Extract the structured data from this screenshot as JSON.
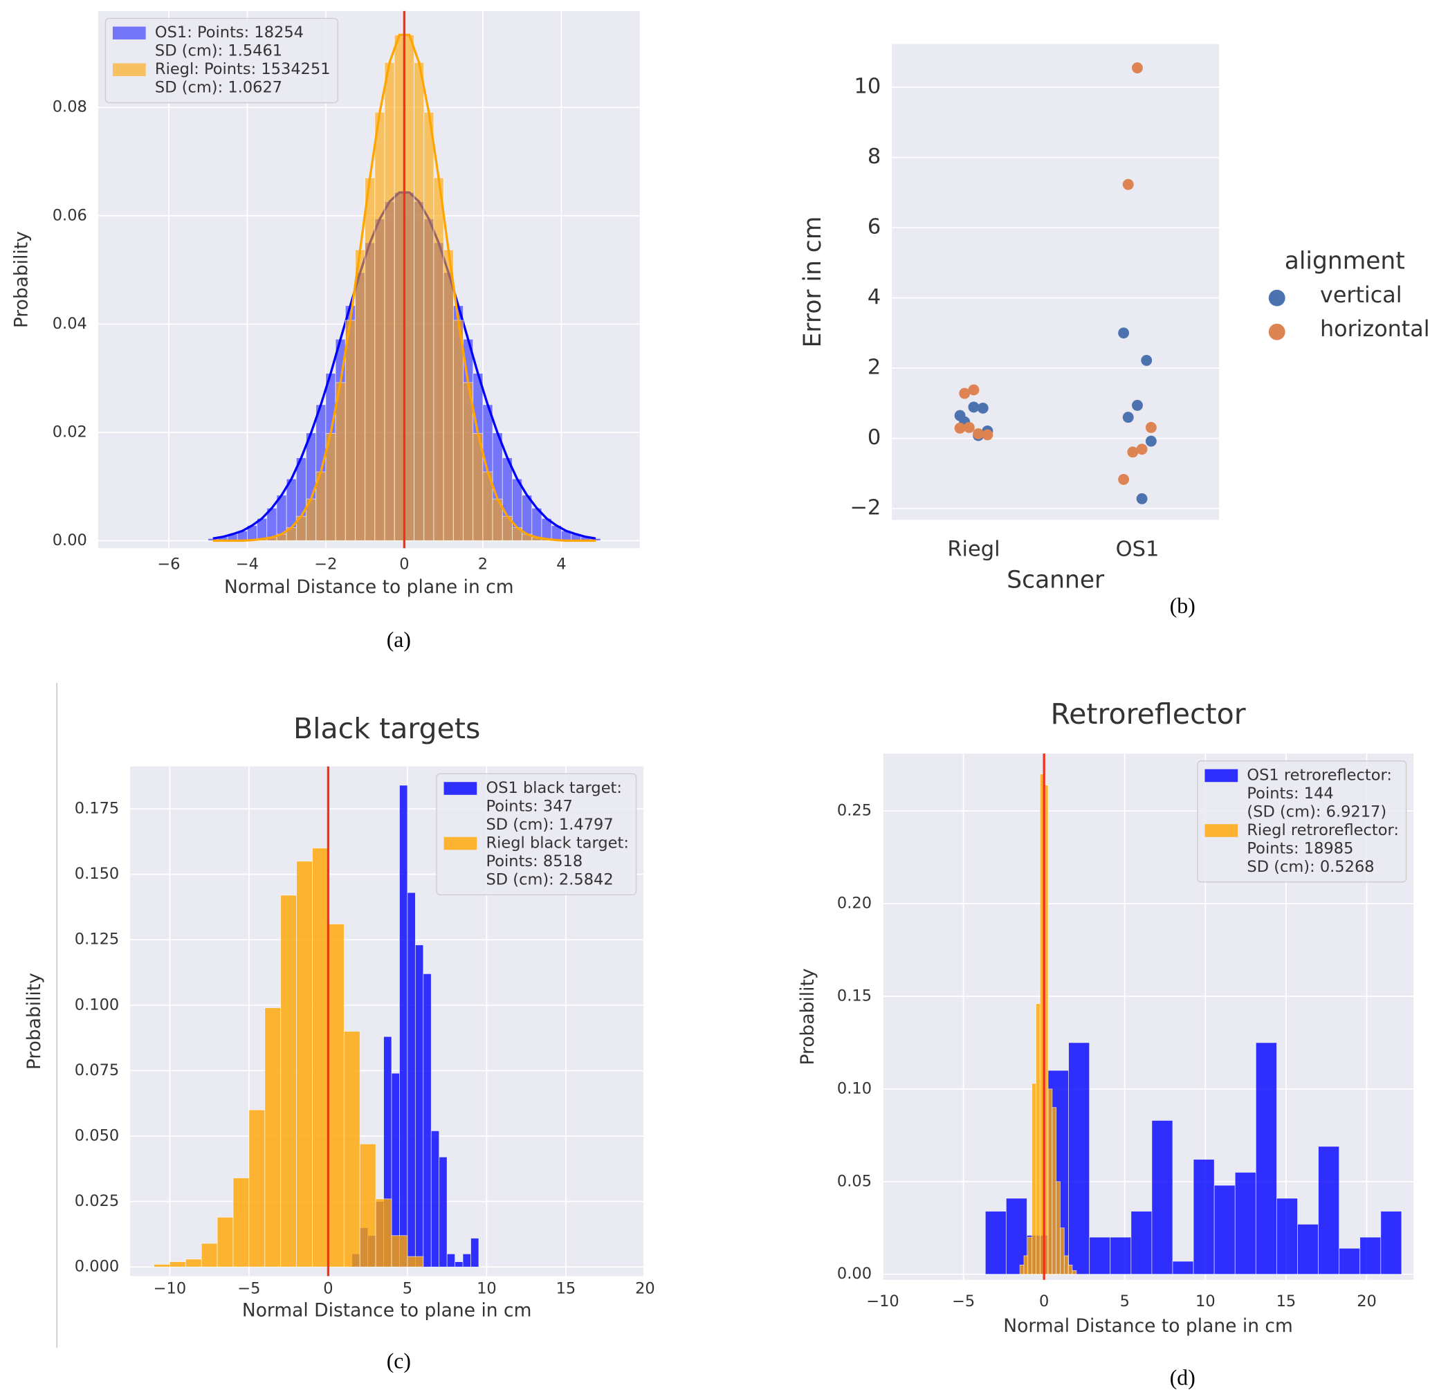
{
  "chart_data": [
    {
      "type": "histogram",
      "caption": "(a)",
      "xlabel": "Normal Distance to plane in cm",
      "ylabel": "Probability",
      "xlim": [
        -7.8,
        6.0
      ],
      "ylim": [
        -0.0014,
        0.0978
      ],
      "xticks": [
        {
          "value": -6,
          "label": "−6"
        },
        {
          "value": -4,
          "label": "−4"
        },
        {
          "value": -2,
          "label": "−2"
        },
        0,
        2,
        4
      ],
      "yticks": [
        {
          "value": 0,
          "label": "0.00"
        },
        {
          "value": 0.02,
          "label": "0.02"
        },
        {
          "value": 0.04,
          "label": "0.04"
        },
        {
          "value": 0.06,
          "label": "0.06"
        },
        {
          "value": 0.08,
          "label": "0.08"
        }
      ],
      "grid": true,
      "legend": "upper left",
      "kde": true,
      "vline": 0,
      "vline_color": "#f0321e",
      "series": [
        {
          "name": [
            "OS1: Points: 18254",
            "SD (cm): 1.5461"
          ],
          "color": "#0000ff",
          "alpha": 0.5,
          "bins": [
            -5,
            -4.75,
            -4.5,
            -4.25,
            -4,
            -3.75,
            -3.5,
            -3.25,
            -3,
            -2.75,
            -2.5,
            -2.25,
            -2,
            -1.75,
            -1.5,
            -1.25,
            -1,
            -0.75,
            -0.5,
            -0.25,
            0,
            0.25,
            0.5,
            0.75,
            1,
            1.25,
            1.5,
            1.75,
            2,
            2.25,
            2.5,
            2.75,
            3,
            3.25,
            3.5,
            3.75,
            4,
            4.25,
            4.5,
            4.75,
            5
          ],
          "values": [
            0.0004,
            0.0007,
            0.0012,
            0.0018,
            0.0028,
            0.0041,
            0.006,
            0.0084,
            0.0114,
            0.0153,
            0.0199,
            0.0251,
            0.0309,
            0.0372,
            0.0434,
            0.0495,
            0.055,
            0.0594,
            0.0626,
            0.0643,
            0.0643,
            0.0626,
            0.0594,
            0.055,
            0.0495,
            0.0434,
            0.0372,
            0.0309,
            0.0251,
            0.0199,
            0.0153,
            0.0114,
            0.0084,
            0.006,
            0.0041,
            0.0028,
            0.0018,
            0.0012,
            0.0007,
            0.0004
          ]
        },
        {
          "name": [
            "Riegl: Points: 1534251",
            "SD (cm): 1.0627"
          ],
          "color": "#ffa500",
          "alpha": 0.6,
          "bins": [
            -5,
            -4.75,
            -4.5,
            -4.25,
            -4,
            -3.75,
            -3.5,
            -3.25,
            -3,
            -2.75,
            -2.5,
            -2.25,
            -2,
            -1.75,
            -1.5,
            -1.25,
            -1,
            -0.75,
            -0.5,
            -0.25,
            0,
            0.25,
            0.5,
            0.75,
            1,
            1.25,
            1.5,
            1.75,
            2,
            2.25,
            2.5,
            2.75,
            3,
            3.25,
            3.5,
            3.75,
            4,
            4.25,
            4.5,
            4.75,
            5
          ],
          "values": [
            0,
            0,
            0,
            0,
            0.0001,
            0.0003,
            0.0006,
            0.0012,
            0.0024,
            0.0045,
            0.0077,
            0.0127,
            0.0198,
            0.0292,
            0.0407,
            0.0537,
            0.067,
            0.0791,
            0.0883,
            0.0934,
            0.0934,
            0.0883,
            0.0791,
            0.067,
            0.0537,
            0.0407,
            0.0292,
            0.0198,
            0.0127,
            0.0077,
            0.0045,
            0.0024,
            0.0012,
            0.0006,
            0.0003,
            0.0001,
            0,
            0,
            0,
            0
          ]
        }
      ]
    },
    {
      "type": "strip",
      "caption": "(b)",
      "xlabel": "Scanner",
      "ylabel": "Error in cm",
      "legend_title": "alignment",
      "legend": "outside right",
      "categories": [
        "Riegl",
        "OS1"
      ],
      "ylim": [
        -2.32,
        11.23
      ],
      "yticks": [
        {
          "value": -2,
          "label": "−2"
        },
        0,
        2,
        4,
        6,
        8,
        10
      ],
      "grid": true,
      "series": [
        {
          "name": "vertical",
          "color": "#4c72b0",
          "values": [
            [
              0.65,
              0.86,
              0.89,
              0.47,
              0.21,
              0.08
            ],
            [
              3.0,
              2.22,
              0.94,
              0.6,
              -0.08,
              -1.72
            ]
          ]
        },
        {
          "name": "horizontal",
          "color": "#dd8452",
          "values": [
            [
              1.38,
              1.28,
              0.1,
              0.13,
              0.31,
              0.29
            ],
            [
              10.55,
              7.23,
              0.31,
              -0.31,
              -0.39,
              -1.17
            ]
          ]
        }
      ]
    },
    {
      "type": "histogram",
      "title": "Black targets",
      "title_color": "#2a6db5",
      "caption": "(c)",
      "xlabel": "Normal Distance to plane in cm",
      "ylabel": "Probability",
      "xlim": [
        -12.5,
        19.9
      ],
      "ylim": [
        -0.0035,
        0.1912
      ],
      "xticks": [
        {
          "value": -10,
          "label": "−10"
        },
        {
          "value": -5,
          "label": "−5"
        },
        0,
        5,
        10,
        15,
        20
      ],
      "yticks": [
        {
          "value": 0,
          "label": "0.000"
        },
        {
          "value": 0.025,
          "label": "0.025"
        },
        {
          "value": 0.05,
          "label": "0.050"
        },
        {
          "value": 0.075,
          "label": "0.075"
        },
        {
          "value": 0.1,
          "label": "0.100"
        },
        {
          "value": 0.125,
          "label": "0.125"
        },
        {
          "value": 0.15,
          "label": "0.150"
        },
        {
          "value": 0.175,
          "label": "0.175"
        }
      ],
      "grid": true,
      "legend": "upper right",
      "kde": false,
      "vline": 0,
      "vline_color": "#f0321e",
      "series": [
        {
          "name": [
            "OS1 black target:",
            "Points: 347",
            "SD (cm): 1.4797"
          ],
          "color": "#0000ff",
          "alpha": 0.8,
          "bins": [
            1.5,
            2,
            2.5,
            3,
            3.5,
            4,
            4.5,
            5,
            5.5,
            6,
            6.5,
            7,
            7.5,
            8,
            8.5,
            9,
            9.5
          ],
          "values": [
            0.005,
            0.015,
            0.012,
            0.025,
            0.088,
            0.074,
            0.184,
            0.143,
            0.123,
            0.112,
            0.052,
            0.042,
            0.005,
            0.002,
            0.005,
            0.011
          ]
        },
        {
          "name": [
            "Riegl black target:",
            "Points: 8518",
            "SD (cm): 2.5842"
          ],
          "color": "#ffa500",
          "alpha": 0.8,
          "bins": [
            -11,
            -10,
            -9,
            -8,
            -7,
            -6,
            -5,
            -4,
            -3,
            -2,
            -1,
            0,
            1,
            2,
            3,
            4,
            5,
            6
          ],
          "values": [
            0.001,
            0.002,
            0.003,
            0.009,
            0.019,
            0.034,
            0.06,
            0.099,
            0.142,
            0.155,
            0.16,
            0.131,
            0.09,
            0.047,
            0.026,
            0.012,
            0.004
          ]
        }
      ]
    },
    {
      "type": "histogram",
      "title": "Retroreflector",
      "title_color": "#2a6db5",
      "caption": "(d)",
      "xlabel": "Normal Distance to plane in cm",
      "ylabel": "Probability",
      "xlim": [
        -10,
        22.9
      ],
      "ylim": [
        -0.003,
        0.281
      ],
      "xticks": [
        {
          "value": -10,
          "label": "−10"
        },
        {
          "value": -5,
          "label": "−5"
        },
        0,
        5,
        10,
        15,
        20
      ],
      "yticks": [
        {
          "value": 0,
          "label": "0.00"
        },
        {
          "value": 0.05,
          "label": "0.05"
        },
        {
          "value": 0.1,
          "label": "0.10"
        },
        {
          "value": 0.15,
          "label": "0.15"
        },
        {
          "value": 0.2,
          "label": "0.20"
        },
        {
          "value": 0.25,
          "label": "0.25"
        }
      ],
      "grid": true,
      "legend": "upper right",
      "kde": false,
      "vline": 0,
      "vline_color": "#f0321e",
      "series": [
        {
          "name": [
            "OS1 retroreflector:",
            "Points: 144",
            "(SD (cm): 6.9217)"
          ],
          "color": "#0000ff",
          "alpha": 0.8,
          "bins": [
            -3.64,
            -2.35,
            -1.06,
            0.23,
            1.52,
            2.81,
            4.1,
            5.39,
            6.68,
            7.97,
            9.26,
            10.55,
            11.84,
            13.13,
            14.42,
            15.71,
            17.0,
            18.29,
            19.58,
            20.87,
            22.16
          ],
          "values": [
            0.034,
            0.041,
            0.021,
            0.11,
            0.125,
            0.02,
            0.02,
            0.034,
            0.083,
            0.007,
            0.062,
            0.048,
            0.055,
            0.125,
            0.041,
            0.027,
            0.069,
            0.014,
            0.02,
            0.034
          ]
        },
        {
          "name": [
            "Riegl retroreflector:",
            "Points: 18985",
            "SD (cm): 0.5268"
          ],
          "color": "#ffa500",
          "alpha": 0.8,
          "bins": [
            -1.5,
            -1.25,
            -1,
            -0.75,
            -0.5,
            -0.25,
            0,
            0.25,
            0.5,
            0.75,
            1,
            1.25,
            1.5,
            1.75,
            2
          ],
          "values": [
            0.005,
            0.01,
            0.02,
            0.103,
            0.146,
            0.27,
            0.264,
            0.1,
            0.09,
            0.05,
            0.025,
            0.01,
            0.005,
            0.002
          ]
        }
      ]
    }
  ]
}
